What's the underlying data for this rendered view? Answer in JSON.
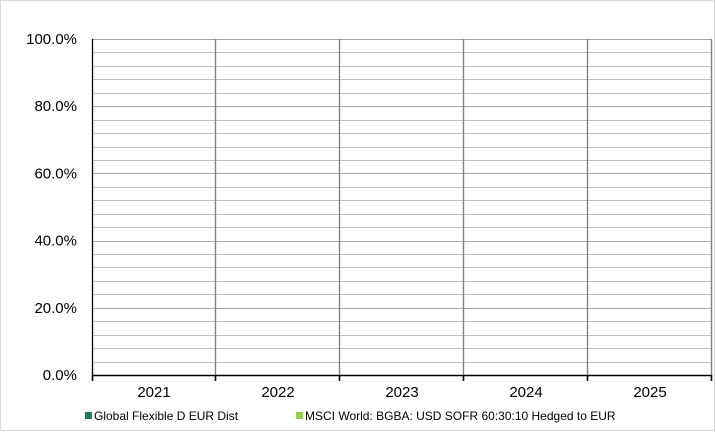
{
  "chart_data": {
    "type": "bar",
    "categories": [
      "2021",
      "2022",
      "2023",
      "2024",
      "2025"
    ],
    "series": [
      {
        "name": "Global Flexible D EUR Dist",
        "values": [
          null,
          null,
          null,
          null,
          null
        ],
        "color": "#1f7a5c"
      },
      {
        "name": "MSCI World: BGBA: USD SOFR 60:30:10 Hedged to EUR",
        "values": [
          null,
          null,
          null,
          null,
          null
        ],
        "color": "#92d050"
      }
    ],
    "y_tick_labels": [
      "0.0%",
      "20.0%",
      "40.0%",
      "60.0%",
      "80.0%",
      "100.0%"
    ],
    "ylim": [
      0,
      100
    ],
    "y_major_step": 20,
    "y_minor_step": 4,
    "grid": true,
    "legend_position": "bottom"
  }
}
